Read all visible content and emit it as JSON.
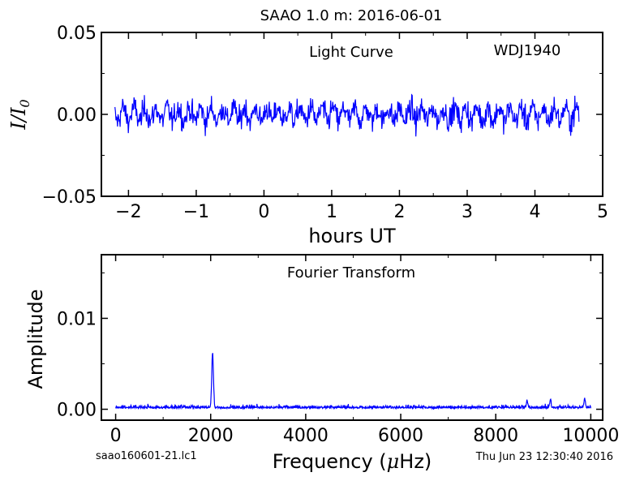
{
  "title": "SAAO 1.0 m:  2016-06-01",
  "footer": {
    "filename": "saao160601-21.lc1",
    "timestamp": "Thu Jun 23 12:30:40 2016"
  },
  "colors": {
    "series": "#0000ff",
    "axes": "#000000",
    "background": "#ffffff"
  },
  "chart_data": [
    {
      "type": "line",
      "annotation": "Light Curve",
      "target": "WDJ1940",
      "xlabel": "hours UT",
      "ylabel_main": "I/I",
      "ylabel_sub": "0",
      "xlim": [
        -2.4,
        5.0
      ],
      "ylim": [
        -0.05,
        0.05
      ],
      "x_ticks": [
        "−2",
        "−1",
        "0",
        "1",
        "2",
        "3",
        "4",
        "5"
      ],
      "x_tick_values": [
        -2,
        -1,
        0,
        1,
        2,
        3,
        4,
        5
      ],
      "y_ticks": [
        "−0.05",
        "0.00",
        "0.05"
      ],
      "y_tick_values": [
        -0.05,
        0.0,
        0.05
      ],
      "grid": false,
      "series": [
        {
          "x_start": -2.2,
          "x_end": 4.65,
          "n_points": 900,
          "approx_rms": 0.007,
          "y_min": -0.023,
          "y_max": 0.019
        }
      ]
    },
    {
      "type": "line",
      "annotation": "Fourier Transform",
      "xlabel_main": "Frequency (",
      "xlabel_mu": "μ",
      "xlabel_tail": "Hz)",
      "ylabel": "Amplitude",
      "xlim": [
        -300,
        10250
      ],
      "ylim": [
        -0.0012,
        0.017
      ],
      "x_ticks": [
        "0",
        "2000",
        "4000",
        "6000",
        "8000",
        "10000"
      ],
      "x_tick_values": [
        0,
        2000,
        4000,
        6000,
        8000,
        10000
      ],
      "y_ticks": [
        "0.00",
        "0.01"
      ],
      "y_tick_values": [
        0.0,
        0.01
      ],
      "grid": false,
      "series": [
        {
          "x_start": 0,
          "x_end": 10000,
          "noise_level": 0.0004,
          "peaks": [
            {
              "x": 2040,
              "y": 0.006
            },
            {
              "x": 9870,
              "y": 0.0011
            },
            {
              "x": 9150,
              "y": 0.0009
            },
            {
              "x": 8660,
              "y": 0.0008
            }
          ]
        }
      ]
    }
  ]
}
